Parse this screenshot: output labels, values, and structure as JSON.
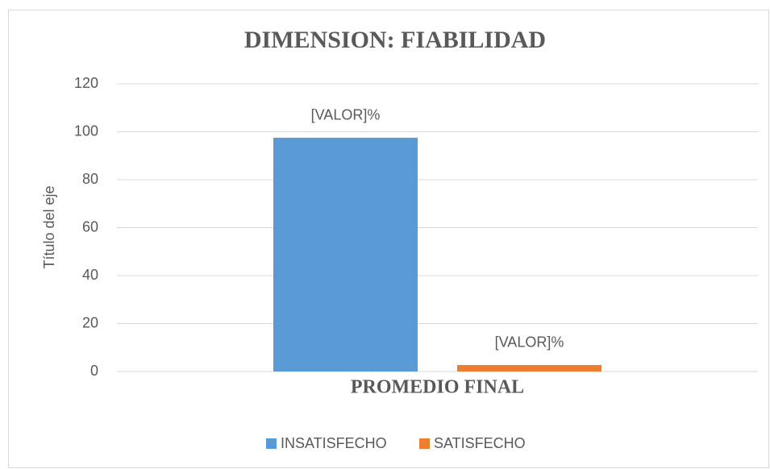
{
  "chart_data": {
    "type": "bar",
    "title": "DIMENSION: FIABILIDAD",
    "y_label": "Título del eje",
    "categories": [
      "PROMEDIO FINAL"
    ],
    "series": [
      {
        "name": "INSATISFECHO",
        "color": "#5b9bd5",
        "values": [
          97.5
        ],
        "value_labels": [
          "[VALOR]%"
        ]
      },
      {
        "name": "SATISFECHO",
        "color": "#ed7d31",
        "values": [
          2.7
        ],
        "value_labels": [
          "[VALOR]%"
        ]
      }
    ],
    "ylim": [
      0,
      120
    ],
    "yticks": [
      0,
      20,
      40,
      60,
      80,
      100,
      120
    ],
    "grid": true,
    "legend": "bottom"
  }
}
